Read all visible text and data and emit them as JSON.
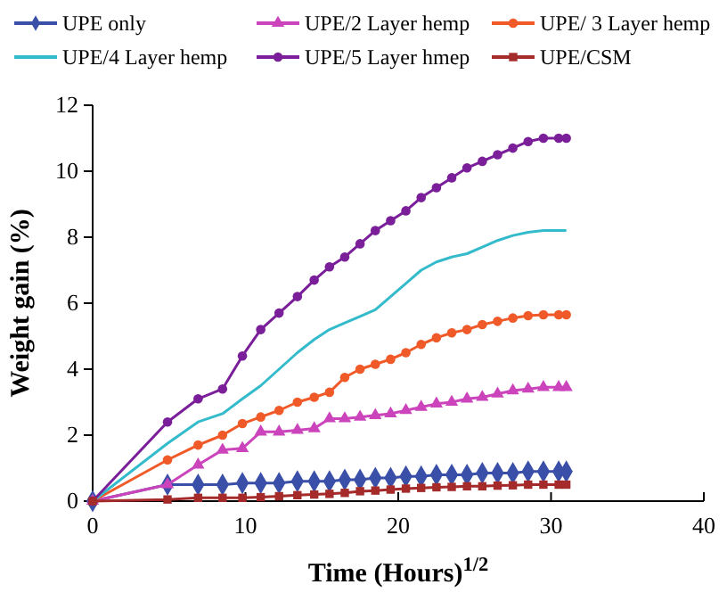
{
  "chart_data": {
    "type": "line",
    "xlabel": "Time (Hours)$^{1/2}$",
    "ylabel": "Weight gain (%)",
    "x": [
      0,
      4.9,
      6.9,
      8.5,
      9.8,
      11,
      12.2,
      13.4,
      14.5,
      15.5,
      16.5,
      17.5,
      18.5,
      19.5,
      20.5,
      21.5,
      22.5,
      23.5,
      24.5,
      25.5,
      26.5,
      27.5,
      28.5,
      29.5,
      30.5,
      31
    ],
    "xlim": [
      0,
      40
    ],
    "xticks": [
      0,
      10,
      20,
      30,
      40
    ],
    "ylim": [
      0,
      12
    ],
    "yticks": [
      0,
      2,
      4,
      6,
      8,
      10,
      12
    ],
    "grid": false,
    "legend": "top",
    "line_style": "solid",
    "series": [
      {
        "name": "UPE only",
        "color": "#3a4fa8",
        "marker": "diamond",
        "values": [
          0,
          0.5,
          0.5,
          0.5,
          0.55,
          0.55,
          0.55,
          0.6,
          0.6,
          0.6,
          0.65,
          0.65,
          0.7,
          0.7,
          0.75,
          0.75,
          0.8,
          0.8,
          0.8,
          0.85,
          0.85,
          0.85,
          0.9,
          0.9,
          0.9,
          0.9
        ]
      },
      {
        "name": "UPE/2 Layer hemp",
        "color": "#cc44bb",
        "marker": "triangle",
        "values": [
          0,
          0.5,
          1.1,
          1.55,
          1.6,
          2.1,
          2.1,
          2.15,
          2.2,
          2.5,
          2.5,
          2.55,
          2.6,
          2.65,
          2.75,
          2.85,
          2.95,
          3.0,
          3.1,
          3.15,
          3.25,
          3.35,
          3.4,
          3.45,
          3.45,
          3.45
        ]
      },
      {
        "name": "UPE/ 3 Layer hemp",
        "color": "#f05a28",
        "marker": "circle",
        "values": [
          0,
          1.25,
          1.7,
          2.0,
          2.35,
          2.55,
          2.75,
          3.0,
          3.15,
          3.3,
          3.75,
          4.0,
          4.15,
          4.3,
          4.5,
          4.75,
          4.95,
          5.1,
          5.2,
          5.35,
          5.45,
          5.55,
          5.62,
          5.65,
          5.65,
          5.65
        ]
      },
      {
        "name": "UPE/4 Layer hemp",
        "color": "#33bbcc",
        "marker": "none",
        "values": [
          0,
          1.75,
          2.4,
          2.65,
          3.1,
          3.5,
          4.0,
          4.5,
          4.9,
          5.2,
          5.4,
          5.6,
          5.8,
          6.2,
          6.6,
          7.0,
          7.25,
          7.4,
          7.5,
          7.7,
          7.9,
          8.05,
          8.15,
          8.2,
          8.2,
          8.2
        ]
      },
      {
        "name": "UPE/5 Layer hmep",
        "color": "#7a1f99",
        "marker": "circle",
        "values": [
          0,
          2.4,
          3.1,
          3.4,
          4.4,
          5.2,
          5.7,
          6.2,
          6.7,
          7.1,
          7.4,
          7.8,
          8.2,
          8.5,
          8.8,
          9.2,
          9.5,
          9.8,
          10.1,
          10.3,
          10.5,
          10.7,
          10.9,
          11.0,
          11.0,
          11.0
        ]
      },
      {
        "name": "UPE/CSM",
        "color": "#a52a2a",
        "marker": "square",
        "values": [
          0,
          0.05,
          0.1,
          0.1,
          0.1,
          0.12,
          0.15,
          0.18,
          0.2,
          0.22,
          0.25,
          0.3,
          0.32,
          0.35,
          0.38,
          0.4,
          0.42,
          0.43,
          0.45,
          0.45,
          0.47,
          0.48,
          0.5,
          0.5,
          0.5,
          0.5
        ]
      }
    ]
  }
}
